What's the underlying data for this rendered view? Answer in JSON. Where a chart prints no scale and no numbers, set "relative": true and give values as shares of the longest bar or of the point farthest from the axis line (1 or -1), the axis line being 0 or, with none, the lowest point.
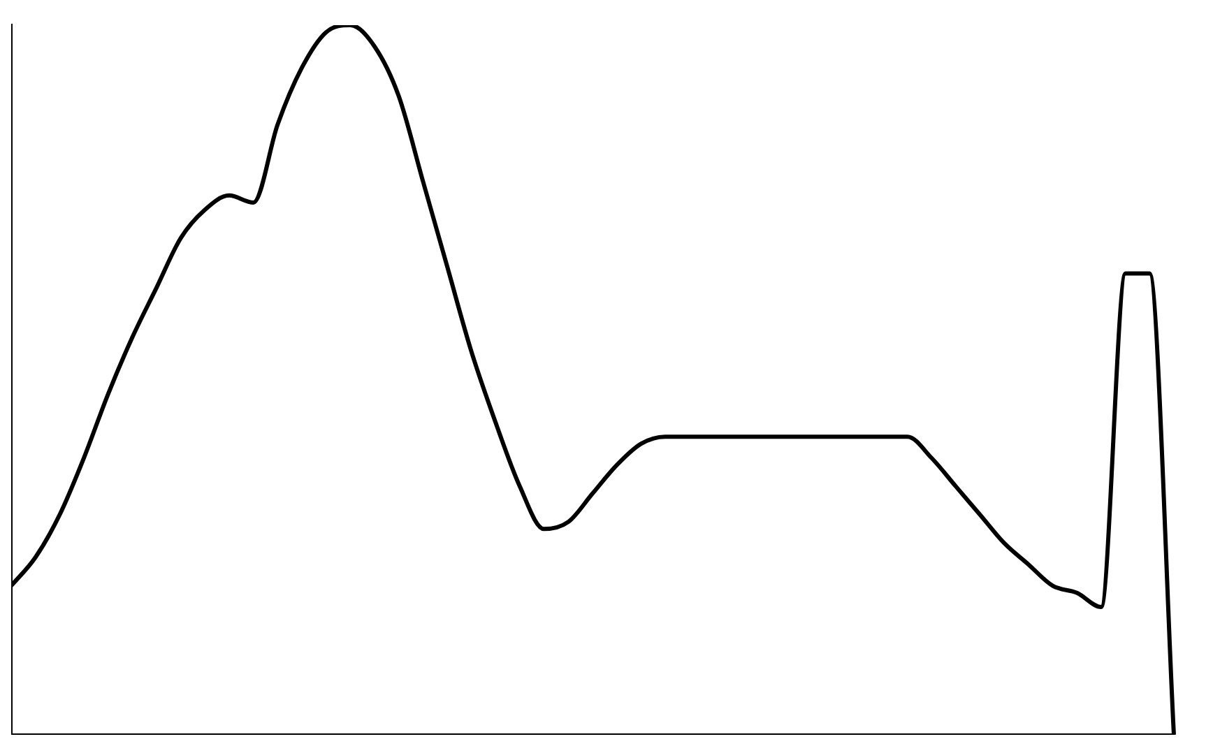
{
  "chart_data": {
    "type": "line",
    "relative": true,
    "color": "#000000",
    "marker": "none",
    "line_style": "solid",
    "grid": false,
    "legend": false,
    "categories": [
      null,
      null,
      null,
      null,
      null,
      null,
      null,
      null,
      null,
      null,
      null,
      null,
      null,
      null,
      null,
      null,
      null,
      null,
      null,
      null,
      null,
      null,
      null,
      null,
      null,
      null,
      null,
      null,
      null,
      null,
      null,
      null,
      null,
      null,
      null,
      null,
      null,
      null,
      null,
      null,
      null,
      null,
      null,
      null,
      null,
      null,
      null,
      null,
      null
    ],
    "values": [
      0.21,
      0.25,
      0.31,
      0.39,
      0.48,
      0.56,
      0.63,
      0.7,
      0.74,
      0.76,
      0.75,
      0.86,
      0.94,
      0.99,
      1,
      0.97,
      0.9,
      0.78,
      0.66,
      0.54,
      0.44,
      0.35,
      0.29,
      0.3,
      0.34,
      0.38,
      0.41,
      0.42,
      0.42,
      0.42,
      0.42,
      0.42,
      0.42,
      0.42,
      0.42,
      0.42,
      0.42,
      0.42,
      0.39,
      0.35,
      0.31,
      0.27,
      0.24,
      0.21,
      0.2,
      0.18,
      0.65,
      0.65,
      0
    ]
  }
}
